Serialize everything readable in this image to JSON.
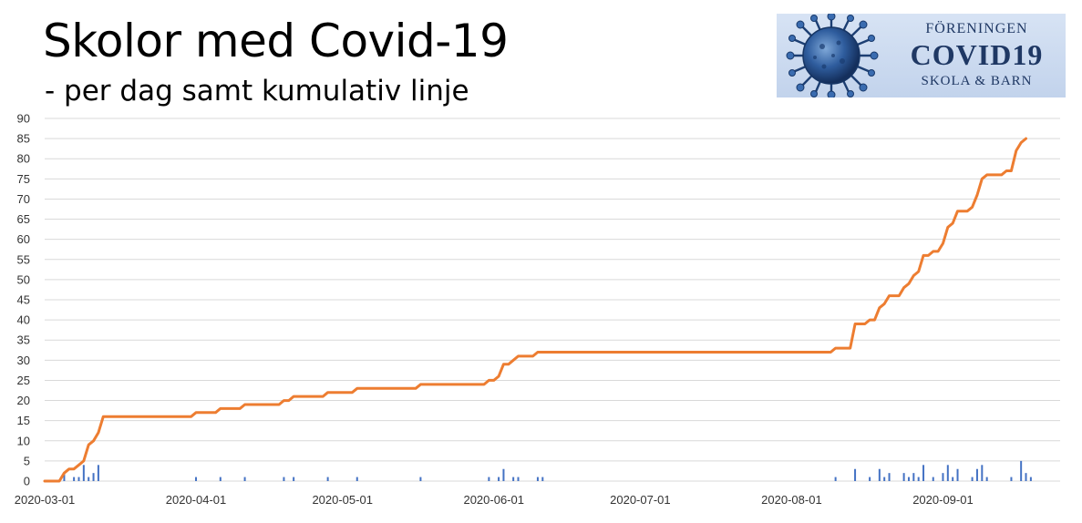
{
  "logo": {
    "line1": "FÖRENINGEN",
    "line2": "COVID19",
    "line3": "SKOLA & BARN"
  },
  "chart_data": {
    "type": "bar",
    "title": "Skolor med Covid-19",
    "subtitle": "- per dag samt kumulativ linje",
    "x_start": "2020-03-01",
    "x_end": "2020-09-25",
    "xticks": [
      "2020-03-01",
      "2020-04-01",
      "2020-05-01",
      "2020-06-01",
      "2020-07-01",
      "2020-08-01",
      "2020-09-01"
    ],
    "yticks": [
      0,
      5,
      10,
      15,
      20,
      25,
      30,
      35,
      40,
      45,
      50,
      55,
      60,
      65,
      70,
      75,
      80,
      85,
      90
    ],
    "ylim": [
      0,
      90
    ],
    "grid": true,
    "legend": "none",
    "colors": {
      "bars": "#4472c4",
      "line": "#ed7d31",
      "grid": "#d9d9d9"
    },
    "series": [
      {
        "kind": "bar",
        "points": [
          [
            "2020-03-05",
            2
          ],
          [
            "2020-03-07",
            1
          ],
          [
            "2020-03-08",
            1
          ],
          [
            "2020-03-09",
            4
          ],
          [
            "2020-03-10",
            1
          ],
          [
            "2020-03-11",
            2
          ],
          [
            "2020-03-12",
            4
          ],
          [
            "2020-04-01",
            1
          ],
          [
            "2020-04-06",
            1
          ],
          [
            "2020-04-11",
            1
          ],
          [
            "2020-04-19",
            1
          ],
          [
            "2020-04-21",
            1
          ],
          [
            "2020-04-28",
            1
          ],
          [
            "2020-05-04",
            1
          ],
          [
            "2020-05-17",
            1
          ],
          [
            "2020-05-31",
            1
          ],
          [
            "2020-06-02",
            1
          ],
          [
            "2020-06-03",
            3
          ],
          [
            "2020-06-05",
            1
          ],
          [
            "2020-06-06",
            1
          ],
          [
            "2020-06-10",
            1
          ],
          [
            "2020-06-11",
            1
          ],
          [
            "2020-08-10",
            1
          ],
          [
            "2020-08-14",
            3
          ],
          [
            "2020-08-17",
            1
          ],
          [
            "2020-08-19",
            3
          ],
          [
            "2020-08-20",
            1
          ],
          [
            "2020-08-21",
            2
          ],
          [
            "2020-08-24",
            2
          ],
          [
            "2020-08-25",
            1
          ],
          [
            "2020-08-26",
            2
          ],
          [
            "2020-08-27",
            1
          ],
          [
            "2020-08-28",
            4
          ],
          [
            "2020-08-30",
            1
          ],
          [
            "2020-09-01",
            2
          ],
          [
            "2020-09-02",
            4
          ],
          [
            "2020-09-03",
            1
          ],
          [
            "2020-09-04",
            3
          ],
          [
            "2020-09-07",
            1
          ],
          [
            "2020-09-08",
            3
          ],
          [
            "2020-09-09",
            4
          ],
          [
            "2020-09-10",
            1
          ],
          [
            "2020-09-15",
            1
          ],
          [
            "2020-09-17",
            5
          ],
          [
            "2020-09-18",
            2
          ],
          [
            "2020-09-19",
            1
          ]
        ]
      },
      {
        "kind": "line",
        "points": [
          [
            "2020-03-01",
            0
          ],
          [
            "2020-03-04",
            0
          ],
          [
            "2020-03-05",
            2
          ],
          [
            "2020-03-06",
            3
          ],
          [
            "2020-03-07",
            3
          ],
          [
            "2020-03-08",
            4
          ],
          [
            "2020-03-09",
            5
          ],
          [
            "2020-03-10",
            9
          ],
          [
            "2020-03-11",
            10
          ],
          [
            "2020-03-12",
            12
          ],
          [
            "2020-03-13",
            16
          ],
          [
            "2020-03-31",
            16
          ],
          [
            "2020-04-01",
            17
          ],
          [
            "2020-04-05",
            17
          ],
          [
            "2020-04-06",
            18
          ],
          [
            "2020-04-10",
            18
          ],
          [
            "2020-04-11",
            19
          ],
          [
            "2020-04-18",
            19
          ],
          [
            "2020-04-19",
            20
          ],
          [
            "2020-04-20",
            20
          ],
          [
            "2020-04-21",
            21
          ],
          [
            "2020-04-27",
            21
          ],
          [
            "2020-04-28",
            22
          ],
          [
            "2020-05-03",
            22
          ],
          [
            "2020-05-04",
            23
          ],
          [
            "2020-05-16",
            23
          ],
          [
            "2020-05-17",
            24
          ],
          [
            "2020-05-30",
            24
          ],
          [
            "2020-05-31",
            25
          ],
          [
            "2020-06-01",
            25
          ],
          [
            "2020-06-02",
            26
          ],
          [
            "2020-06-03",
            29
          ],
          [
            "2020-06-04",
            29
          ],
          [
            "2020-06-05",
            30
          ],
          [
            "2020-06-06",
            31
          ],
          [
            "2020-06-09",
            31
          ],
          [
            "2020-06-10",
            32
          ],
          [
            "2020-08-09",
            32
          ],
          [
            "2020-08-10",
            33
          ],
          [
            "2020-08-13",
            33
          ],
          [
            "2020-08-14",
            39
          ],
          [
            "2020-08-16",
            39
          ],
          [
            "2020-08-17",
            40
          ],
          [
            "2020-08-18",
            40
          ],
          [
            "2020-08-19",
            43
          ],
          [
            "2020-08-20",
            44
          ],
          [
            "2020-08-21",
            46
          ],
          [
            "2020-08-23",
            46
          ],
          [
            "2020-08-24",
            48
          ],
          [
            "2020-08-25",
            49
          ],
          [
            "2020-08-26",
            51
          ],
          [
            "2020-08-27",
            52
          ],
          [
            "2020-08-28",
            56
          ],
          [
            "2020-08-29",
            56
          ],
          [
            "2020-08-30",
            57
          ],
          [
            "2020-08-31",
            57
          ],
          [
            "2020-09-01",
            59
          ],
          [
            "2020-09-02",
            63
          ],
          [
            "2020-09-03",
            64
          ],
          [
            "2020-09-04",
            67
          ],
          [
            "2020-09-06",
            67
          ],
          [
            "2020-09-07",
            68
          ],
          [
            "2020-09-08",
            71
          ],
          [
            "2020-09-09",
            75
          ],
          [
            "2020-09-10",
            76
          ],
          [
            "2020-09-13",
            76
          ],
          [
            "2020-09-14",
            77
          ],
          [
            "2020-09-15",
            77
          ],
          [
            "2020-09-16",
            82
          ],
          [
            "2020-09-17",
            84
          ],
          [
            "2020-09-18",
            85
          ]
        ]
      }
    ]
  }
}
